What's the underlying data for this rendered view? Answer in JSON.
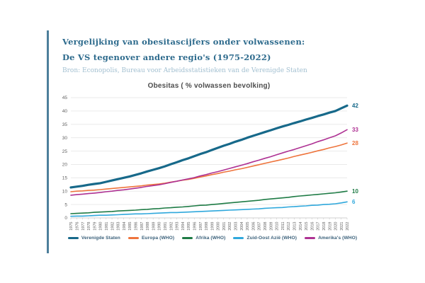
{
  "header": {
    "title_line1": "Vergelijking van obesitascijfers onder volwassenen:",
    "title_line2": "De VS tegenover andere regio's (1975-2022)",
    "source": "Bron: Econopolis, Bureau voor Arbeidsstatistieken van de Verenigde Staten",
    "accent_color": "#4d7f9b",
    "title_color": "#2e6b8d",
    "source_color": "#a3c0d1"
  },
  "chart_data": {
    "type": "line",
    "title": "Obesitas ( % volwassen bevolking)",
    "xlabel": "",
    "ylabel": "",
    "ylim": [
      0,
      45
    ],
    "yticks": [
      0,
      5,
      10,
      15,
      20,
      25,
      30,
      35,
      40,
      45
    ],
    "grid": true,
    "legend_position": "bottom",
    "x": [
      "1975",
      "1976",
      "1977",
      "1978",
      "1979",
      "1980",
      "1981",
      "1982",
      "1983",
      "1984",
      "1985",
      "1986",
      "1987",
      "1988",
      "1989",
      "1990",
      "1991",
      "1992",
      "1993",
      "1994",
      "1995",
      "1996",
      "1997",
      "1998",
      "1999",
      "2000",
      "2001",
      "2002",
      "2003",
      "2004",
      "2005",
      "2006",
      "2007",
      "2008",
      "2009",
      "2010",
      "2011",
      "2012",
      "2013",
      "2014",
      "2015",
      "2016",
      "2017",
      "2018",
      "2019",
      "2020",
      "2021",
      "2022"
    ],
    "series": [
      {
        "name": "Verenigde Staten",
        "color": "#17698a",
        "line_width": 3.2,
        "end_label": "42",
        "values": [
          11.4,
          11.7,
          12.0,
          12.4,
          12.7,
          13.0,
          13.5,
          14.0,
          14.5,
          15.0,
          15.5,
          16.1,
          16.7,
          17.4,
          18.0,
          18.6,
          19.3,
          20.1,
          20.8,
          21.6,
          22.3,
          23.1,
          23.9,
          24.6,
          25.4,
          26.2,
          27.0,
          27.7,
          28.5,
          29.2,
          30.0,
          30.7,
          31.4,
          32.1,
          32.8,
          33.5,
          34.2,
          34.8,
          35.5,
          36.1,
          36.8,
          37.4,
          38.1,
          38.7,
          39.4,
          40.0,
          41.0,
          42.0
        ]
      },
      {
        "name": "Europa (WHO)",
        "color": "#ee743c",
        "line_width": 1.6,
        "end_label": "28",
        "values": [
          9.8,
          10.0,
          10.1,
          10.3,
          10.4,
          10.6,
          10.8,
          11.0,
          11.2,
          11.4,
          11.6,
          11.8,
          12.0,
          12.3,
          12.5,
          12.7,
          13.0,
          13.4,
          13.7,
          14.1,
          14.4,
          14.8,
          15.3,
          15.7,
          16.2,
          16.6,
          17.1,
          17.5,
          18.0,
          18.4,
          18.9,
          19.4,
          19.9,
          20.4,
          20.9,
          21.4,
          21.9,
          22.4,
          23.0,
          23.5,
          24.0,
          24.5,
          25.1,
          25.6,
          26.2,
          26.7,
          27.3,
          28.0
        ]
      },
      {
        "name": "Afrika (WHO)",
        "color": "#1e7b45",
        "line_width": 1.6,
        "end_label": "10",
        "values": [
          1.6,
          1.7,
          1.8,
          1.9,
          2.1,
          2.2,
          2.3,
          2.4,
          2.6,
          2.7,
          2.8,
          2.9,
          3.1,
          3.2,
          3.4,
          3.5,
          3.7,
          3.8,
          4.0,
          4.1,
          4.3,
          4.5,
          4.7,
          4.8,
          5.0,
          5.2,
          5.4,
          5.6,
          5.8,
          6.0,
          6.2,
          6.4,
          6.6,
          6.9,
          7.1,
          7.3,
          7.5,
          7.7,
          8.0,
          8.2,
          8.4,
          8.6,
          8.8,
          9.0,
          9.2,
          9.4,
          9.7,
          10.0
        ]
      },
      {
        "name": "Zuid-Oost Azië (WHO)",
        "color": "#2fa8dc",
        "line_width": 1.6,
        "end_label": "6",
        "values": [
          0.6,
          0.7,
          0.7,
          0.8,
          0.9,
          1.0,
          1.0,
          1.1,
          1.2,
          1.3,
          1.4,
          1.5,
          1.5,
          1.6,
          1.7,
          1.8,
          1.9,
          2.0,
          2.0,
          2.1,
          2.2,
          2.3,
          2.4,
          2.5,
          2.6,
          2.7,
          2.8,
          2.9,
          3.0,
          3.1,
          3.2,
          3.3,
          3.4,
          3.6,
          3.7,
          3.8,
          3.9,
          4.1,
          4.2,
          4.4,
          4.5,
          4.7,
          4.8,
          5.0,
          5.1,
          5.3,
          5.6,
          6.0
        ]
      },
      {
        "name": "Amerika's (WHO)",
        "color": "#ae3193",
        "line_width": 1.6,
        "end_label": "33",
        "values": [
          8.5,
          8.7,
          8.9,
          9.1,
          9.3,
          9.5,
          9.8,
          10.0,
          10.3,
          10.5,
          10.8,
          11.1,
          11.4,
          11.8,
          12.1,
          12.4,
          12.8,
          13.3,
          13.7,
          14.2,
          14.6,
          15.1,
          15.7,
          16.2,
          16.8,
          17.3,
          17.9,
          18.5,
          19.1,
          19.7,
          20.3,
          21.0,
          21.6,
          22.3,
          22.9,
          23.6,
          24.3,
          25.0,
          25.6,
          26.3,
          27.0,
          27.7,
          28.5,
          29.2,
          30.0,
          30.7,
          31.8,
          33.0
        ]
      }
    ],
    "colors": {
      "grid": "#eaeaea",
      "axis": "#d2d2d2",
      "tick_label": "#606060"
    }
  }
}
